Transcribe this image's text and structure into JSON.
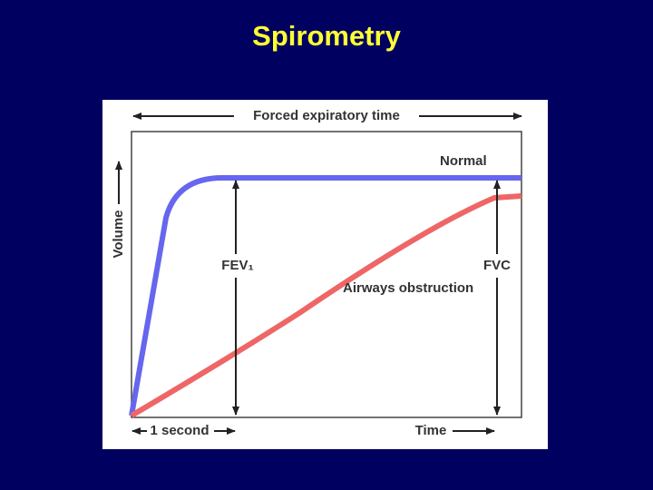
{
  "title": "Spirometry",
  "diagram": {
    "top_axis_label": "Forced expiratory time",
    "y_axis_label": "Volume",
    "x_axis_label": "Time",
    "interval_label": "1 second",
    "normal_label": "Normal",
    "obstruction_label": "Airways obstruction",
    "fev1_label": "FEV₁",
    "fvc_label": "FVC"
  }
}
